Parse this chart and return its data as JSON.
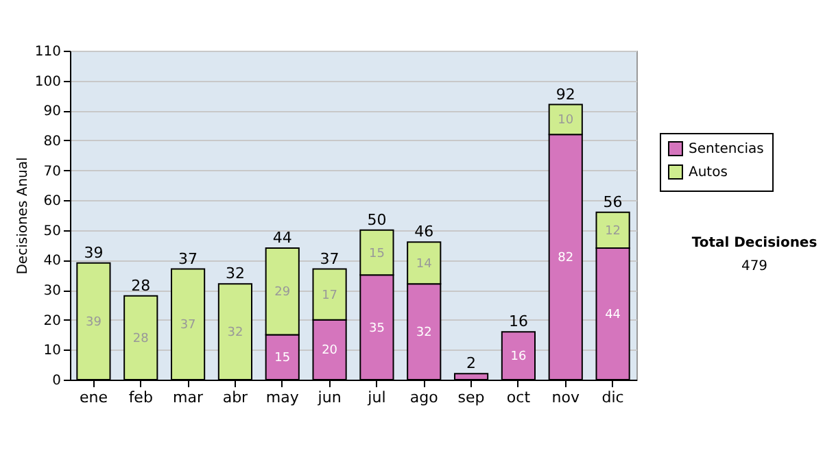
{
  "chart_data": {
    "type": "bar",
    "stacked": true,
    "ylabel": "Decisiones Anual",
    "categories": [
      "ene",
      "feb",
      "mar",
      "abr",
      "may",
      "jun",
      "jul",
      "ago",
      "sep",
      "oct",
      "nov",
      "dic"
    ],
    "series": [
      {
        "name": "Sentencias",
        "color": "#d575bd",
        "values": [
          0,
          0,
          0,
          0,
          15,
          20,
          35,
          32,
          2,
          16,
          82,
          44
        ],
        "value_labels": [
          null,
          null,
          null,
          null,
          "15",
          "20",
          "35",
          "32",
          null,
          "16",
          "82",
          "44"
        ]
      },
      {
        "name": "Autos",
        "color": "#cfec8f",
        "values": [
          39,
          28,
          37,
          32,
          29,
          17,
          15,
          14,
          0,
          0,
          10,
          12
        ],
        "value_labels": [
          "39",
          "28",
          "37",
          "32",
          "29",
          "17",
          "15",
          "14",
          null,
          null,
          "10",
          "12"
        ]
      }
    ],
    "totals": [
      "39",
      "28",
      "37",
      "32",
      "44",
      "37",
      "50",
      "46",
      "2",
      "16",
      "92",
      "56"
    ],
    "ylim": [
      0,
      110
    ],
    "yticks": [
      0,
      10,
      20,
      30,
      40,
      50,
      60,
      70,
      80,
      90,
      100,
      110
    ],
    "grid": "y",
    "legend": "right",
    "annotations": [
      "Total Decisiones",
      "479"
    ]
  }
}
